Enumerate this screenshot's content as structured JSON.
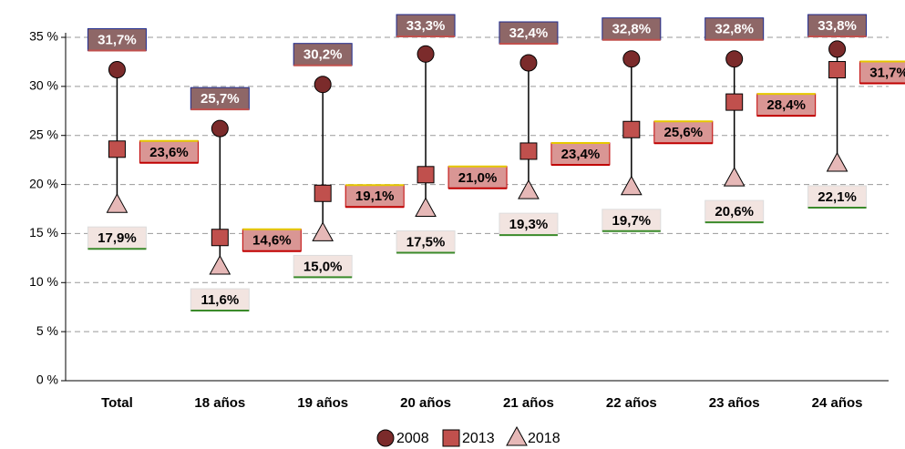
{
  "chart_data": {
    "type": "dot",
    "categories": [
      "Total",
      "18 años",
      "19 años",
      "20 años",
      "21 años",
      "22 años",
      "23 años",
      "24 años"
    ],
    "series": [
      {
        "name": "2008",
        "color": "#7b2b2b",
        "marker": "circle",
        "values": [
          31.7,
          25.7,
          30.2,
          33.3,
          32.4,
          32.8,
          32.8,
          33.8
        ],
        "value_labels": [
          "31,7%",
          "25,7%",
          "30,2%",
          "33,3%",
          "32,4%",
          "32,8%",
          "32,8%",
          "33,8%"
        ]
      },
      {
        "name": "2013",
        "color": "#c0504d",
        "marker": "square",
        "values": [
          23.6,
          14.6,
          19.1,
          21.0,
          23.4,
          25.6,
          28.4,
          31.7
        ],
        "value_labels": [
          "23,6%",
          "14,6%",
          "19,1%",
          "21,0%",
          "23,4%",
          "25,6%",
          "28,4%",
          "31,7%"
        ]
      },
      {
        "name": "2018",
        "color": "#e6b8b7",
        "marker": "triangle",
        "values": [
          17.9,
          11.6,
          15.0,
          17.5,
          19.3,
          19.7,
          20.6,
          22.1
        ],
        "value_labels": [
          "17,9%",
          "11,6%",
          "15,0%",
          "17,5%",
          "19,3%",
          "19,7%",
          "20,6%",
          "22,1%"
        ]
      }
    ],
    "ylim": [
      0,
      35
    ],
    "yticks": [
      {
        "value": 0,
        "label": "0 %"
      },
      {
        "value": 5,
        "label": "5 %"
      },
      {
        "value": 10,
        "label": "10 %"
      },
      {
        "value": 15,
        "label": "15 %"
      },
      {
        "value": 20,
        "label": "20 %"
      },
      {
        "value": 25,
        "label": "25 %"
      },
      {
        "value": 30,
        "label": "30 %"
      },
      {
        "value": 35,
        "label": "35 %"
      }
    ],
    "grid": true,
    "legend": "bottom"
  }
}
